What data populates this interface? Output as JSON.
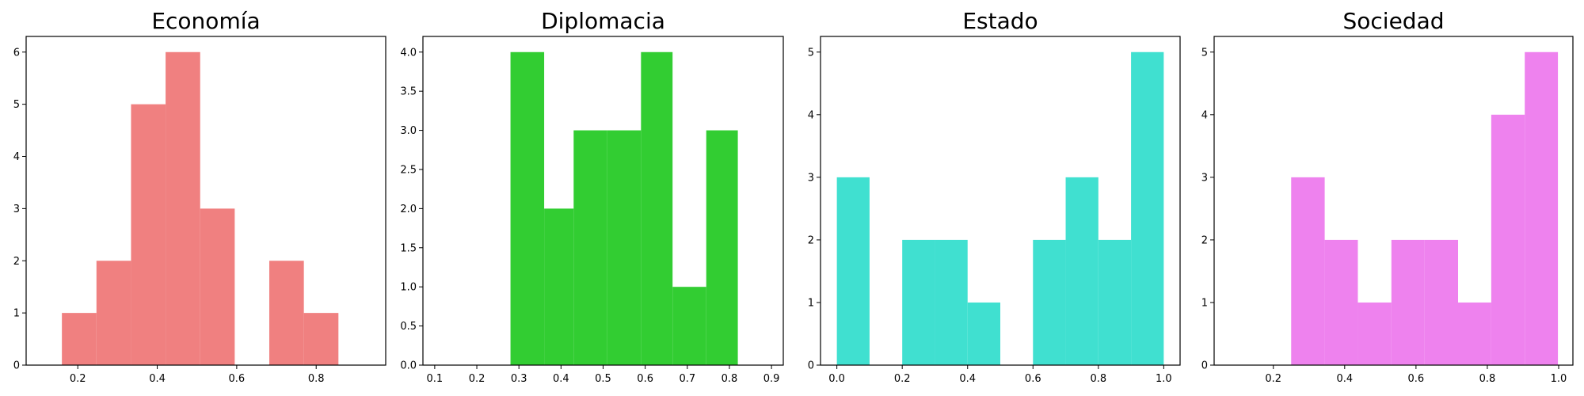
{
  "chart_data": [
    {
      "type": "bar",
      "title": "Economía",
      "color": "#F08080",
      "xlim": [
        0.07,
        0.975
      ],
      "ylim": [
        0,
        6.3
      ],
      "xticks": [
        0.2,
        0.4,
        0.6,
        0.8
      ],
      "xtick_labels": [
        "0.2",
        "0.4",
        "0.6",
        "0.8"
      ],
      "yticks": [
        0,
        1,
        2,
        3,
        4,
        5,
        6
      ],
      "ytick_labels": [
        "0",
        "1",
        "2",
        "3",
        "4",
        "5",
        "6"
      ],
      "bin_edges": [
        0.16,
        0.247,
        0.334,
        0.421,
        0.508,
        0.595,
        0.682,
        0.769,
        0.856
      ],
      "counts": [
        1,
        2,
        5,
        6,
        3,
        0,
        2,
        1
      ]
    },
    {
      "type": "bar",
      "title": "Diplomacia",
      "color": "#32CD32",
      "xlim": [
        0.072,
        0.928
      ],
      "ylim": [
        0,
        4.2
      ],
      "xticks": [
        0.1,
        0.2,
        0.3,
        0.4,
        0.5,
        0.6,
        0.7,
        0.8,
        0.9
      ],
      "xtick_labels": [
        "0.1",
        "0.2",
        "0.3",
        "0.4",
        "0.5",
        "0.6",
        "0.7",
        "0.8",
        "0.9"
      ],
      "yticks": [
        0,
        0.5,
        1,
        1.5,
        2,
        2.5,
        3,
        3.5,
        4
      ],
      "ytick_labels": [
        "0.0",
        "0.5",
        "1.0",
        "1.5",
        "2.0",
        "2.5",
        "3.0",
        "3.5",
        "4.0"
      ],
      "bin_edges": [
        0.28,
        0.36,
        0.43,
        0.51,
        0.59,
        0.665,
        0.745,
        0.82
      ],
      "counts": [
        4,
        2,
        3,
        3,
        4,
        1,
        3
      ]
    },
    {
      "type": "bar",
      "title": "Estado",
      "color": "#40E0D0",
      "xlim": [
        -0.05,
        1.05
      ],
      "ylim": [
        0,
        5.25
      ],
      "xticks": [
        0,
        0.2,
        0.4,
        0.6,
        0.8,
        1.0
      ],
      "xtick_labels": [
        "0.0",
        "0.2",
        "0.4",
        "0.6",
        "0.8",
        "1.0"
      ],
      "yticks": [
        0,
        1,
        2,
        3,
        4,
        5
      ],
      "ytick_labels": [
        "0",
        "1",
        "2",
        "3",
        "4",
        "5"
      ],
      "bin_edges": [
        0,
        0.1,
        0.2,
        0.3,
        0.4,
        0.5,
        0.6,
        0.7,
        0.8,
        0.9,
        1.0
      ],
      "counts": [
        3,
        0,
        2,
        2,
        1,
        0,
        2,
        3,
        2,
        5
      ]
    },
    {
      "type": "bar",
      "title": "Sociedad",
      "color": "#EE82EE",
      "xlim": [
        0.034,
        1.04
      ],
      "ylim": [
        0,
        5.25
      ],
      "xticks": [
        0.2,
        0.4,
        0.6,
        0.8,
        1.0
      ],
      "xtick_labels": [
        "0.2",
        "0.4",
        "0.6",
        "0.8",
        "1.0"
      ],
      "yticks": [
        0,
        1,
        2,
        3,
        4,
        5
      ],
      "ytick_labels": [
        "0",
        "1",
        "2",
        "3",
        "4",
        "5"
      ],
      "bin_edges": [
        0.25,
        0.344,
        0.437,
        0.531,
        0.624,
        0.718,
        0.811,
        0.905,
        0.998
      ],
      "counts": [
        3,
        2,
        1,
        2,
        2,
        1,
        4,
        5
      ]
    }
  ]
}
